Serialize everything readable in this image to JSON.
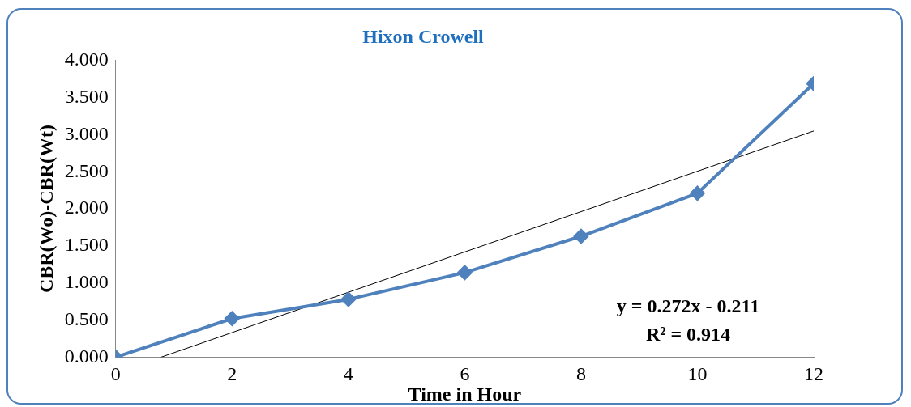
{
  "chart_data": {
    "type": "line",
    "title": "Hixon Crowell",
    "xlabel": "Time in Hour",
    "ylabel": "CBR(Wo)-CBR(Wt)",
    "x": [
      0,
      2,
      4,
      6,
      8,
      10,
      12
    ],
    "series": [
      {
        "color": "#4f81bd",
        "values": [
          0,
          0.52,
          0.78,
          1.14,
          1.63,
          2.21,
          3.69
        ],
        "marker": "diamond"
      },
      {
        "type": "line",
        "color": "#000000",
        "x": [
          0.78,
          12
        ],
        "values": [
          0,
          3.05
        ],
        "marker": "none"
      }
    ],
    "xlim": [
      0,
      12
    ],
    "xticks": [
      0,
      2,
      4,
      6,
      8,
      10,
      12
    ],
    "ylim": [
      0,
      4
    ],
    "yticks": [
      {
        "value": 0,
        "label": "0.000"
      },
      {
        "value": 0.5,
        "label": "0.500"
      },
      {
        "value": 1,
        "label": "1.000"
      },
      {
        "value": 1.5,
        "label": "1.500"
      },
      {
        "value": 2,
        "label": "2.000"
      },
      {
        "value": 2.5,
        "label": "2.500"
      },
      {
        "value": 3,
        "label": "3.000"
      },
      {
        "value": 3.5,
        "label": "3.500"
      },
      {
        "value": 4,
        "label": "4.000"
      }
    ],
    "grid": false,
    "legend": false,
    "annotations": [
      "y = 0.272x - 0.211",
      "R² = 0.914"
    ]
  }
}
